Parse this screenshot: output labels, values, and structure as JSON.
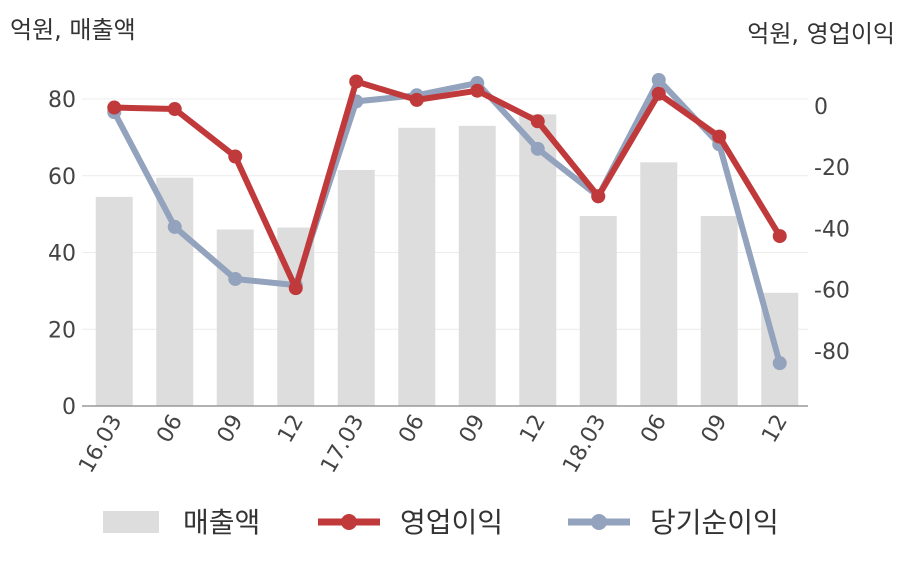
{
  "chart_data": {
    "type": "bar+line",
    "left_unit": "억원, 매출액",
    "right_unit": "억원, 영업이익",
    "categories": [
      "16.03",
      "06",
      "09",
      "12",
      "17.03",
      "06",
      "09",
      "12",
      "18.03",
      "06",
      "09",
      "12"
    ],
    "y_left": {
      "ticks": [
        0,
        20,
        40,
        60,
        80
      ],
      "range": [
        0,
        80
      ]
    },
    "y_right": {
      "ticks": [
        0,
        -20,
        -40,
        -60,
        -80
      ],
      "range": [
        -98,
        0
      ]
    },
    "grid": true,
    "legend_position": "bottom",
    "series": [
      {
        "name": "매출액",
        "type": "bar",
        "axis": "left",
        "color": "#dddddd",
        "values": [
          54.5,
          59.5,
          46,
          46.5,
          61.5,
          72.5,
          73,
          76,
          49.5,
          63.5,
          49.5,
          29.5
        ]
      },
      {
        "name": "영업이익",
        "type": "line",
        "axis": "right",
        "color": "#c0393b",
        "values": [
          -0.5,
          -1,
          -16.5,
          -59.5,
          8,
          2,
          5,
          -5,
          -29.5,
          4,
          -10,
          -42.5
        ]
      },
      {
        "name": "당기순이익",
        "type": "line",
        "axis": "right",
        "color": "#93a2bd",
        "values": [
          -2,
          -39.5,
          -56.5,
          -58.5,
          1.5,
          3.5,
          7.5,
          -14,
          -29.5,
          8.5,
          -12.5,
          -84
        ]
      }
    ]
  }
}
